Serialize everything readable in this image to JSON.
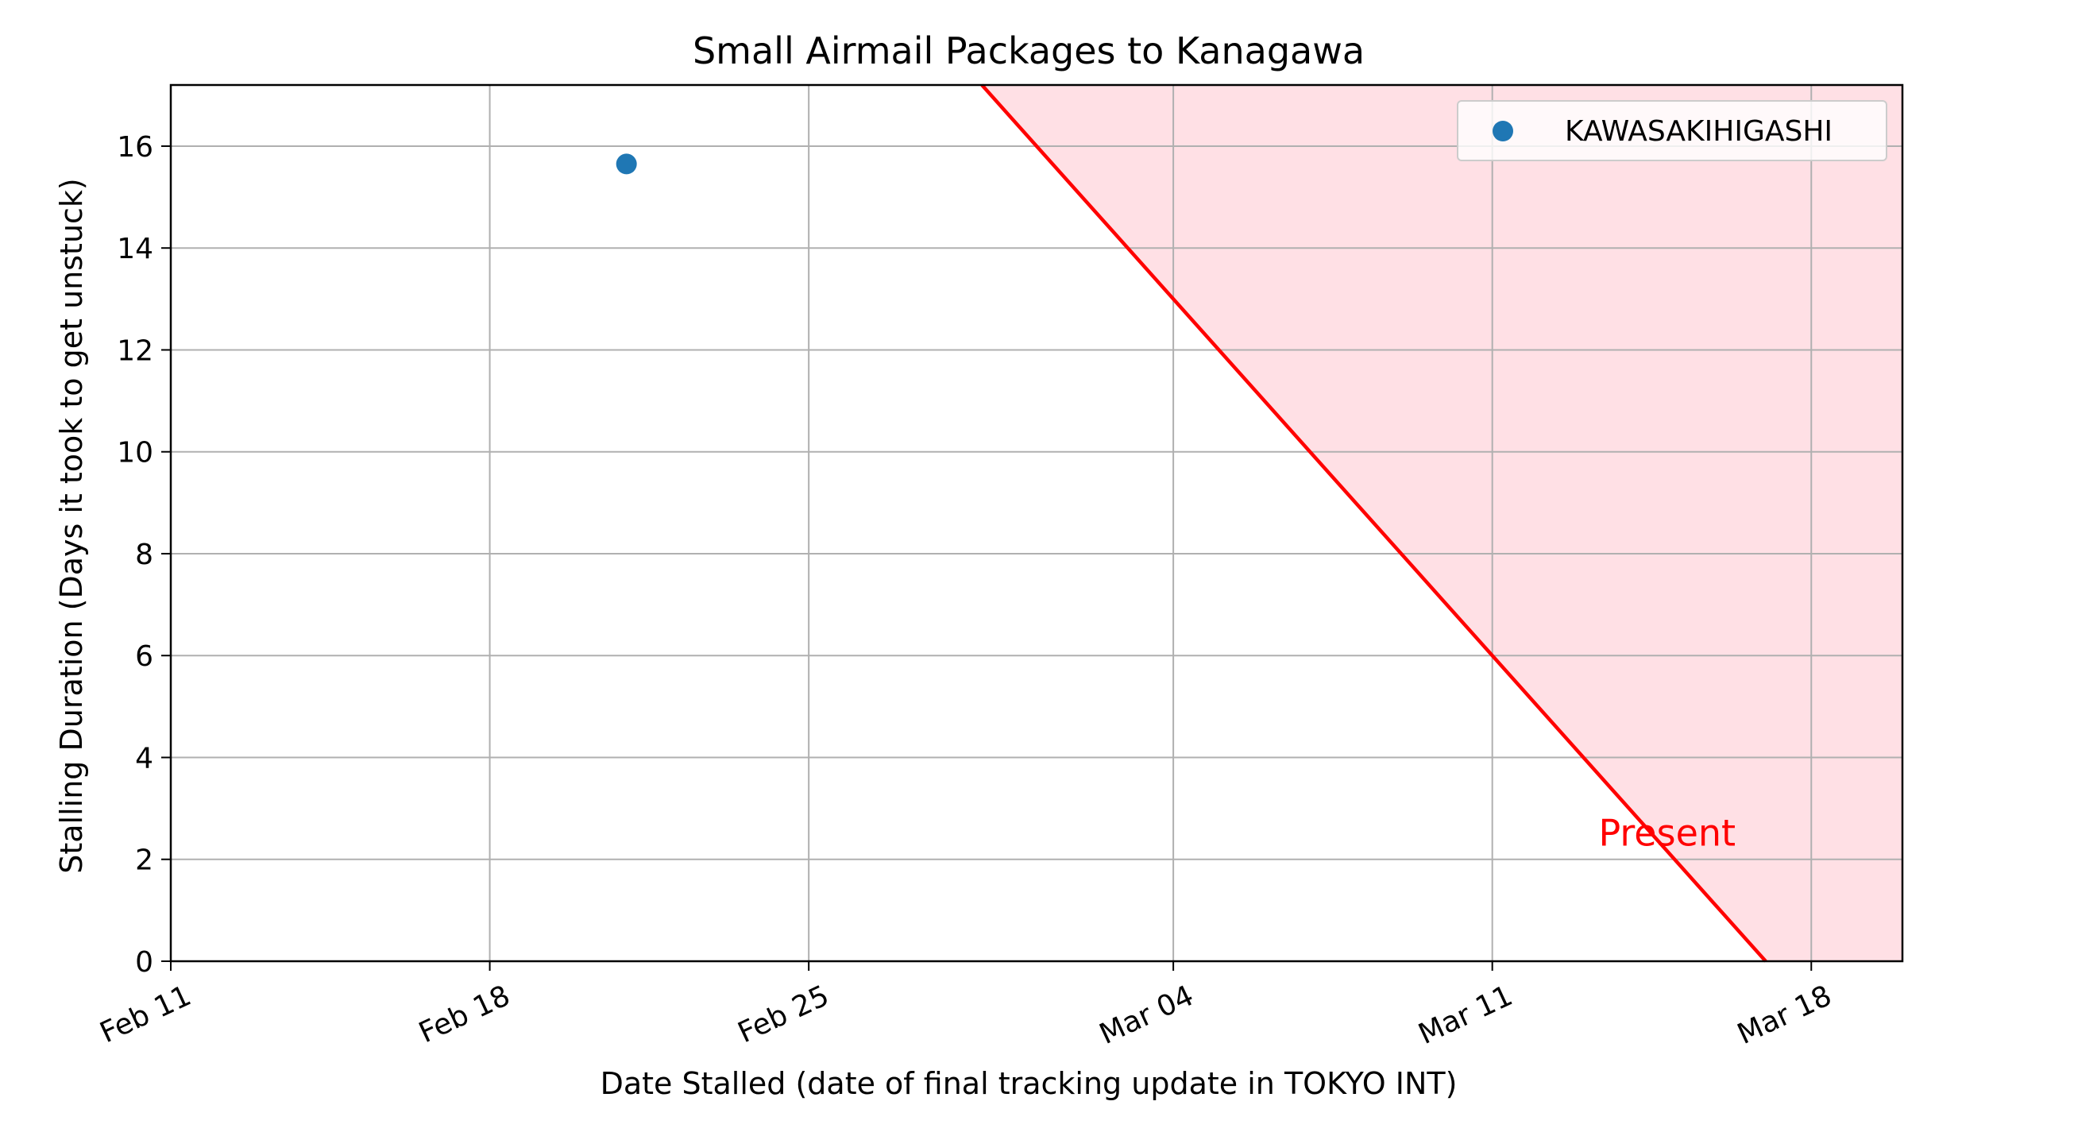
{
  "chart_data": {
    "type": "scatter",
    "title": "Small Airmail Packages to Kanagawa",
    "xlabel": "Date Stalled (date of final tracking update in TOKYO INT)",
    "ylabel": "Stalling Duration (Days it took to get unstuck)",
    "x_ticks": [
      "Feb 11",
      "Feb 18",
      "Feb 25",
      "Mar 04",
      "Mar 11",
      "Mar 18"
    ],
    "y_ticks": [
      "0",
      "2",
      "4",
      "6",
      "8",
      "10",
      "12",
      "14",
      "16"
    ],
    "xlim": [
      "Feb 11",
      "Mar 20"
    ],
    "ylim": [
      0,
      17.2
    ],
    "grid": true,
    "legend_position": "top-right",
    "series": [
      {
        "name": "KAWASAKIHIGASHI",
        "color": "#1f77b4",
        "points": [
          {
            "x": "Feb 21",
            "y": 15.65
          }
        ]
      }
    ],
    "present_line": {
      "label": "Present",
      "color": "#ff0000",
      "fill_color": "#ffe0e5",
      "date": "Mar 17"
    }
  }
}
